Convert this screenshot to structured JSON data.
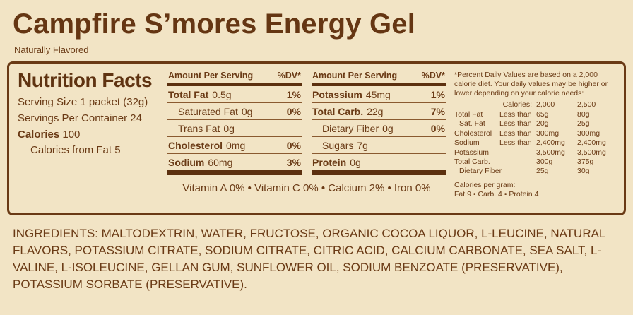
{
  "header": {
    "title": "Campfire S’mores Energy Gel",
    "subtitle": "Naturally Flavored"
  },
  "nutrition": {
    "heading": "Nutrition Facts",
    "serving_size": "Serving Size 1 packet (32g)",
    "servings_per_container": "Servings Per Container 24",
    "calories_label": "Calories",
    "calories_value": "100",
    "calories_from_fat": "Calories from Fat  5",
    "amount_header": "Amount Per Serving",
    "dv_header": "%DV*",
    "col1_rows": [
      {
        "name": "Total Fat",
        "amount": "0.5g",
        "dv": "1%"
      },
      {
        "name": "Saturated Fat",
        "amount": "0g",
        "dv": "0%"
      },
      {
        "name": "Trans Fat",
        "amount": "0g",
        "dv": ""
      },
      {
        "name": "Cholesterol",
        "amount": "0mg",
        "dv": "0%"
      },
      {
        "name": "Sodium",
        "amount": "60mg",
        "dv": "3%"
      }
    ],
    "col2_rows": [
      {
        "name": "Potassium",
        "amount": "45mg",
        "dv": "1%"
      },
      {
        "name": "Total Carb.",
        "amount": "22g",
        "dv": "7%"
      },
      {
        "name": "Dietary Fiber",
        "amount": "0g",
        "dv": "0%"
      },
      {
        "name": "Sugars",
        "amount": "7g",
        "dv": ""
      },
      {
        "name": "Protein",
        "amount": "0g",
        "dv": ""
      }
    ],
    "vitamins_line": "Vitamin A 0% • Vitamin C 0% • Calcium 2% • Iron 0%",
    "footnote": "*Percent Daily Values are based on a 2,000 calorie diet. Your daily values may be higher or lower depending on your calorie needs:",
    "dv_table": {
      "header": {
        "calories_label": "Calories:",
        "c1": "2,000",
        "c2": "2,500"
      },
      "rows": [
        {
          "name": "Total Fat",
          "cond": "Less than",
          "v1": "65g",
          "v2": "80g"
        },
        {
          "name": "Sat. Fat",
          "cond": "Less than",
          "v1": "20g",
          "v2": "25g"
        },
        {
          "name": "Cholesterol",
          "cond": "Less than",
          "v1": "300mg",
          "v2": "300mg"
        },
        {
          "name": "Sodium",
          "cond": "Less than",
          "v1": "2,400mg",
          "v2": "2,400mg"
        },
        {
          "name": "Potassium",
          "cond": "",
          "v1": "3,500mg",
          "v2": "3,500mg"
        },
        {
          "name": "Total Carb.",
          "cond": "",
          "v1": "300g",
          "v2": "375g"
        },
        {
          "name": "Dietary Fiber",
          "cond": "",
          "v1": "25g",
          "v2": "30g"
        }
      ],
      "per_gram_label": "Calories per gram:",
      "per_gram_values": "Fat 9   •   Carb. 4   •   Protein 4"
    }
  },
  "ingredients": "INGREDIENTS: MALTODEXTRIN, WATER, FRUCTOSE, ORGANIC COCOA LIQUOR, L-LEUCINE, NATURAL FLAVORS, POTASSIUM CITRATE, SODIUM CITRATE, CITRIC ACID, CALCIUM CARBONATE, SEA SALT, L-VALINE, L-ISOLEUCINE, GELLAN GUM, SUNFLOWER OIL, SODIUM BENZOATE (PRESERVATIVE), POTASSIUM SORBATE (PRESERVATIVE)."
}
